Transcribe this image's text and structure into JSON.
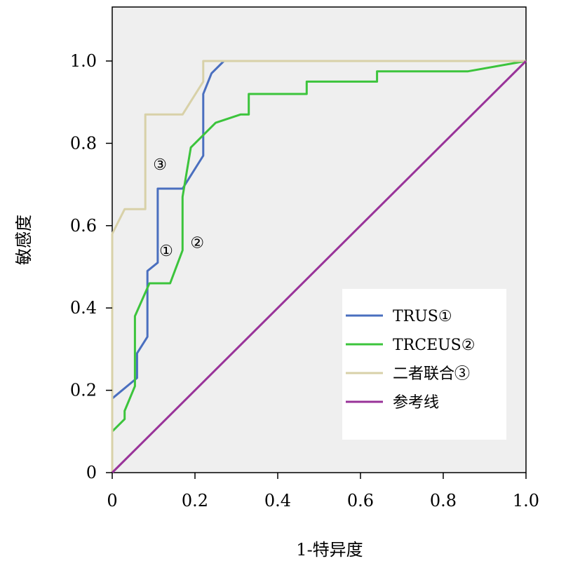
{
  "chart_data": {
    "type": "line",
    "xlabel": "1-特异度",
    "ylabel": "敏感度",
    "xlim": [
      0,
      1
    ],
    "ylim": [
      0,
      1.1
    ],
    "x_ticks": [
      0,
      0.2,
      0.4,
      0.6,
      0.8,
      1.0
    ],
    "x_tick_labels": [
      "0",
      "0.2",
      "0.4",
      "0.6",
      "0.8",
      "1.0"
    ],
    "y_ticks": [
      0,
      0.2,
      0.4,
      0.6,
      0.8,
      1.0
    ],
    "y_tick_labels": [
      "0",
      "0.2",
      "0.4",
      "0.6",
      "0.8",
      "1.0"
    ],
    "grid": false,
    "legend_position": "bottom-right",
    "background": "#efefef",
    "series": [
      {
        "name": "TRUS①",
        "color": "#4a6fbf",
        "points": [
          [
            0,
            0
          ],
          [
            0,
            0.18
          ],
          [
            0.06,
            0.23
          ],
          [
            0.06,
            0.29
          ],
          [
            0.085,
            0.33
          ],
          [
            0.085,
            0.49
          ],
          [
            0.11,
            0.51
          ],
          [
            0.11,
            0.69
          ],
          [
            0.17,
            0.69
          ],
          [
            0.22,
            0.77
          ],
          [
            0.22,
            0.92
          ],
          [
            0.24,
            0.97
          ],
          [
            0.27,
            1.0
          ],
          [
            1.0,
            1.0
          ]
        ]
      },
      {
        "name": "TRCEUS②",
        "color": "#3cc43c",
        "points": [
          [
            0,
            0
          ],
          [
            0,
            0.1
          ],
          [
            0.03,
            0.13
          ],
          [
            0.03,
            0.15
          ],
          [
            0.055,
            0.21
          ],
          [
            0.055,
            0.38
          ],
          [
            0.09,
            0.46
          ],
          [
            0.14,
            0.46
          ],
          [
            0.17,
            0.54
          ],
          [
            0.17,
            0.67
          ],
          [
            0.19,
            0.79
          ],
          [
            0.25,
            0.85
          ],
          [
            0.31,
            0.87
          ],
          [
            0.33,
            0.87
          ],
          [
            0.33,
            0.92
          ],
          [
            0.47,
            0.92
          ],
          [
            0.47,
            0.95
          ],
          [
            0.64,
            0.95
          ],
          [
            0.64,
            0.975
          ],
          [
            0.86,
            0.975
          ],
          [
            1.0,
            1.0
          ]
        ]
      },
      {
        "name": "二者联合③",
        "color": "#d8d1a8",
        "points": [
          [
            0,
            0
          ],
          [
            0,
            0.58
          ],
          [
            0.03,
            0.64
          ],
          [
            0.08,
            0.64
          ],
          [
            0.08,
            0.87
          ],
          [
            0.17,
            0.87
          ],
          [
            0.22,
            0.95
          ],
          [
            0.22,
            1.0
          ],
          [
            1.0,
            1.0
          ]
        ]
      },
      {
        "name": "参考线",
        "color": "#993399",
        "points": [
          [
            0,
            0
          ],
          [
            1,
            1
          ]
        ]
      }
    ],
    "annotations": [
      {
        "text": "①",
        "x": 0.1,
        "y": 0.54
      },
      {
        "text": "②",
        "x": 0.175,
        "y": 0.56
      },
      {
        "text": "③",
        "x": 0.085,
        "y": 0.75
      }
    ]
  }
}
